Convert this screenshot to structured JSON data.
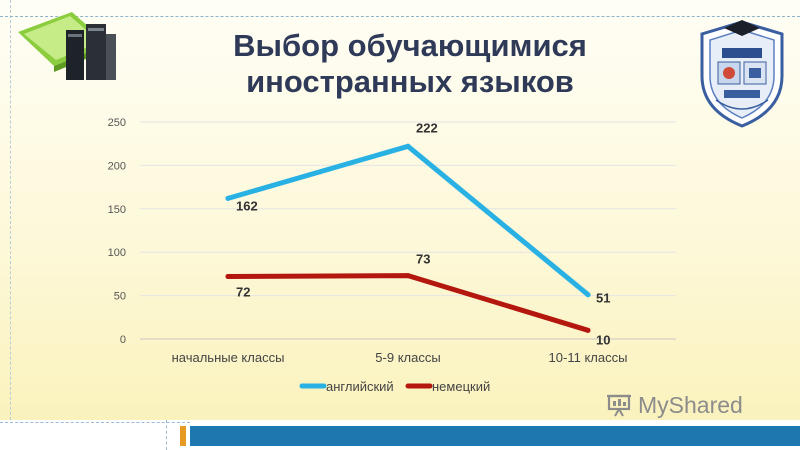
{
  "slide": {
    "title_line1": "Выбор обучающимися",
    "title_line2": "иностранных языков"
  },
  "colors": {
    "title": "#2f3a58",
    "english": "#29b1e4",
    "german": "#b3170e",
    "accent_bar": "#1d78b0"
  },
  "icons": [
    "books-icon",
    "school-emblem-icon",
    "myshared-logo-icon"
  ],
  "watermark": {
    "text": "MyShared"
  },
  "chart_data": {
    "type": "line",
    "title": "",
    "xlabel": "",
    "ylabel": "",
    "categories": [
      "начальные классы",
      "5-9 классы",
      "10-11 классы"
    ],
    "ylim": [
      0,
      250
    ],
    "yticks": [
      0,
      50,
      100,
      150,
      200,
      250
    ],
    "grid": true,
    "legend_position": "bottom",
    "series": [
      {
        "name": "английский",
        "values": [
          162,
          222,
          51
        ],
        "color": "#29b1e4"
      },
      {
        "name": "немецкий",
        "values": [
          72,
          73,
          10
        ],
        "color": "#b3170e"
      }
    ]
  }
}
